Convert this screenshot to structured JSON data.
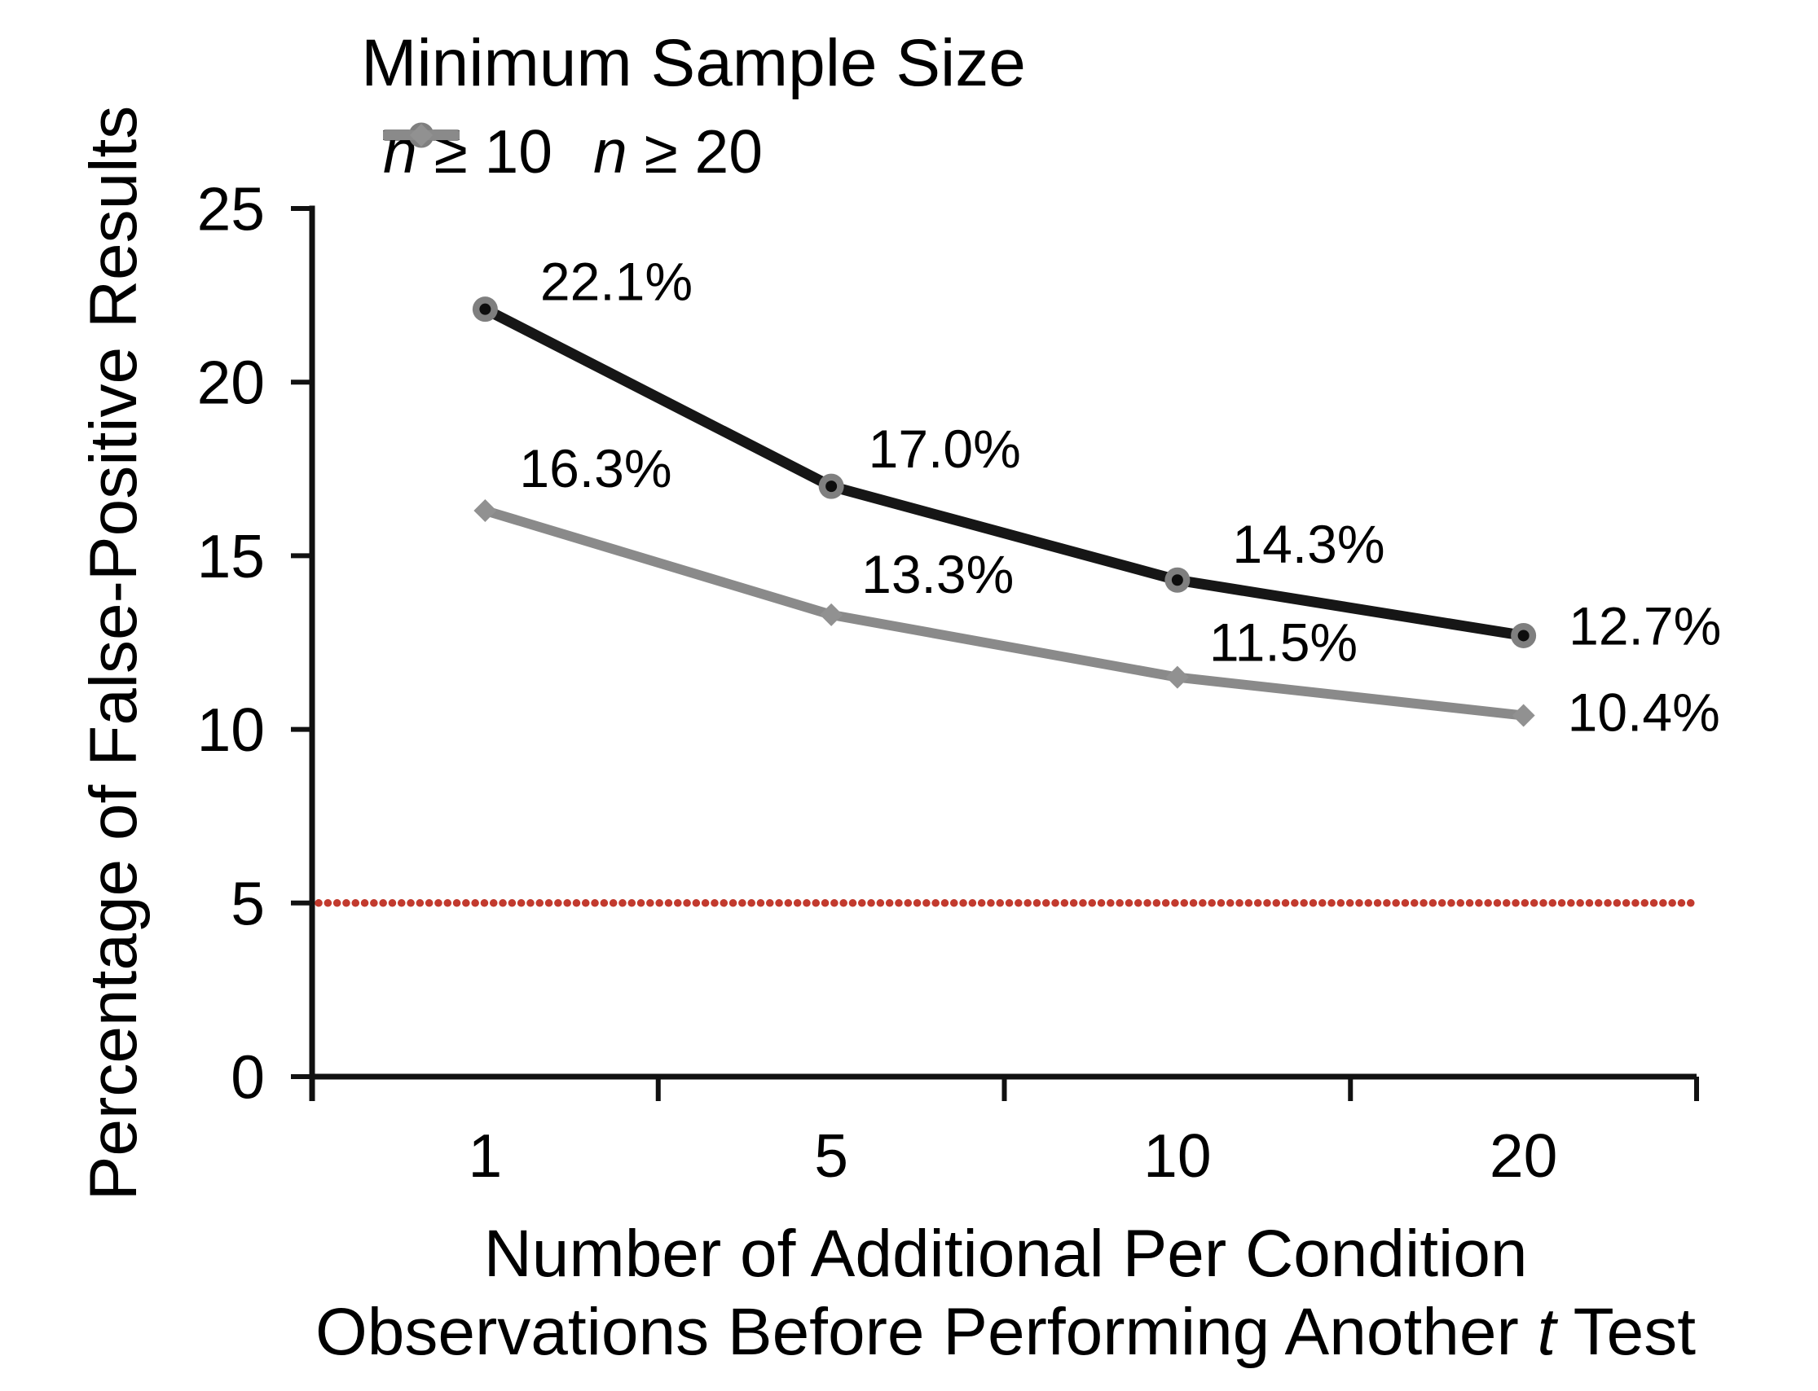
{
  "chart_data": {
    "type": "line",
    "title": "",
    "legend": {
      "title": "Minimum Sample Size",
      "position": "top-left"
    },
    "categories": [
      "1",
      "5",
      "10",
      "20"
    ],
    "series": [
      {
        "name": "*n* ≥ 10",
        "color": "#161616",
        "marker": "circle",
        "marker_ring_color": "#7f7f7f",
        "marker_core_color": "#0d0d0d",
        "values": [
          22.1,
          17.0,
          14.3,
          12.7
        ],
        "data_labels": [
          "22.1%",
          "17.0%",
          "14.3%",
          "12.7%"
        ]
      },
      {
        "name": "*n* ≥ 20",
        "color": "#8a8a8a",
        "marker": "diamond",
        "marker_fill_color": "#919191",
        "values": [
          16.3,
          13.3,
          11.5,
          10.4
        ],
        "data_labels": [
          "16.3%",
          "13.3%",
          "11.5%",
          "10.4%"
        ]
      }
    ],
    "reference_line": {
      "value": 5,
      "color": "#c23a2e",
      "style": "dotted"
    },
    "xlabel_lines": [
      "Number of Additional Per Condition",
      "Observations Before Performing Another *t* Test"
    ],
    "ylabel": "Percentage of False-Positive Results",
    "ylim": [
      0,
      25
    ],
    "yticks": [
      0,
      5,
      10,
      15,
      20,
      25
    ],
    "grid": false,
    "layout": {
      "plot": {
        "x0": 383,
        "x1": 2082,
        "y0": 1322,
        "y_top": 256
      },
      "tick_len": {
        "x": 30,
        "y": 26
      },
      "axis_color": "#111111",
      "tick_font_px": 75,
      "data_label_font_px": 66,
      "label_offsets": [
        [
          [
            52,
            -35
          ],
          [
            30,
            -47
          ],
          [
            52,
            -45
          ],
          [
            40,
            -13
          ]
        ],
        [
          [
            28,
            -53
          ],
          [
            23,
            -51
          ],
          [
            25,
            -44
          ],
          [
            40,
            -5
          ]
        ]
      ]
    }
  }
}
